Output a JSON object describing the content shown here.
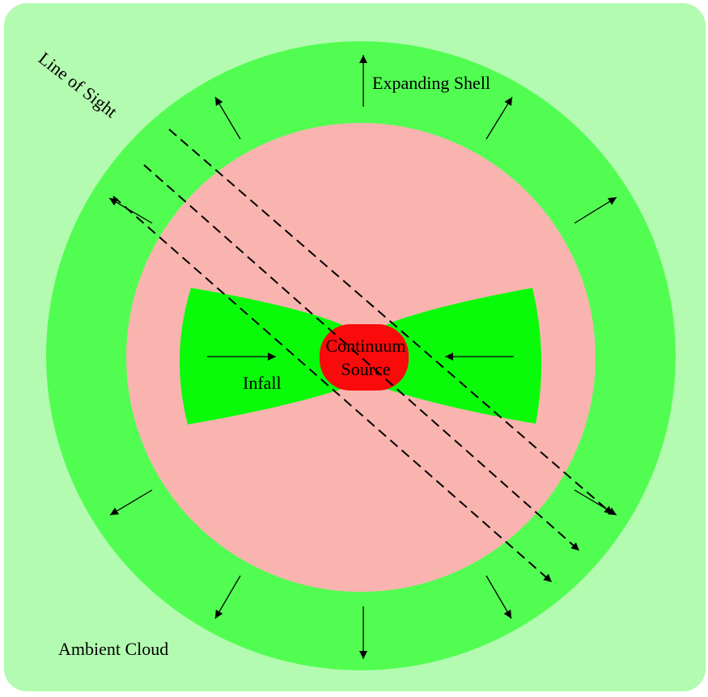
{
  "labels": {
    "line_of_sight": "Line of Sight",
    "expanding_shell": "Expanding Shell",
    "continuum": "Continuum",
    "source": "Source",
    "infall": "Infall",
    "ambient_cloud": "Ambient Cloud"
  },
  "colors": {
    "ambient_cloud": "#b3fbb0",
    "expanding_shell": "#52fd52",
    "interior": "#f9b4b0",
    "torus": "#0afb0a",
    "continuum_source": "#fa0a0a",
    "lines": "#000000"
  },
  "icons": {
    "shell_arrow": "outward-arrow-icon",
    "infall_arrow": "inward-arrow-icon",
    "line_of_sight_arrow": "dashed-arrow-icon"
  }
}
